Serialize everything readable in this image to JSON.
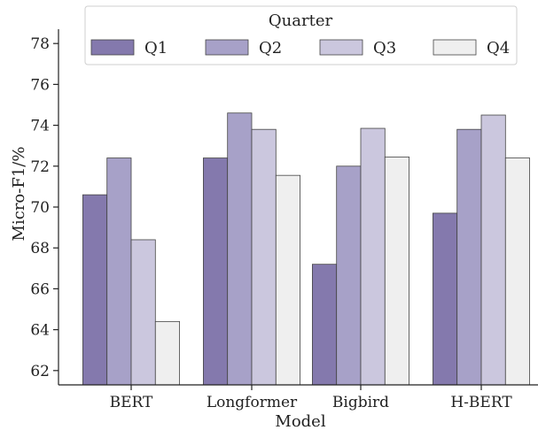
{
  "chart_data": {
    "type": "bar",
    "categories": [
      "BERT",
      "Longformer",
      "Bigbird",
      "H-BERT"
    ],
    "series": [
      {
        "name": "Q1",
        "values": [
          70.6,
          72.4,
          67.2,
          69.7
        ],
        "color": "#8479ad"
      },
      {
        "name": "Q2",
        "values": [
          72.4,
          74.6,
          72.0,
          73.8
        ],
        "color": "#a7a1c8"
      },
      {
        "name": "Q3",
        "values": [
          68.4,
          73.8,
          73.85,
          74.5
        ],
        "color": "#cbc7de"
      },
      {
        "name": "Q4",
        "values": [
          64.4,
          71.55,
          72.45,
          72.4
        ],
        "color": "#efefef"
      }
    ],
    "legend_title": "Quarter",
    "legend_position": "top",
    "xlabel": "Model",
    "ylabel": "Micro-F1/%",
    "ylim": [
      61.3,
      78.7
    ],
    "yticks": [
      62,
      64,
      66,
      68,
      70,
      72,
      74,
      76,
      78
    ],
    "grid": false
  }
}
